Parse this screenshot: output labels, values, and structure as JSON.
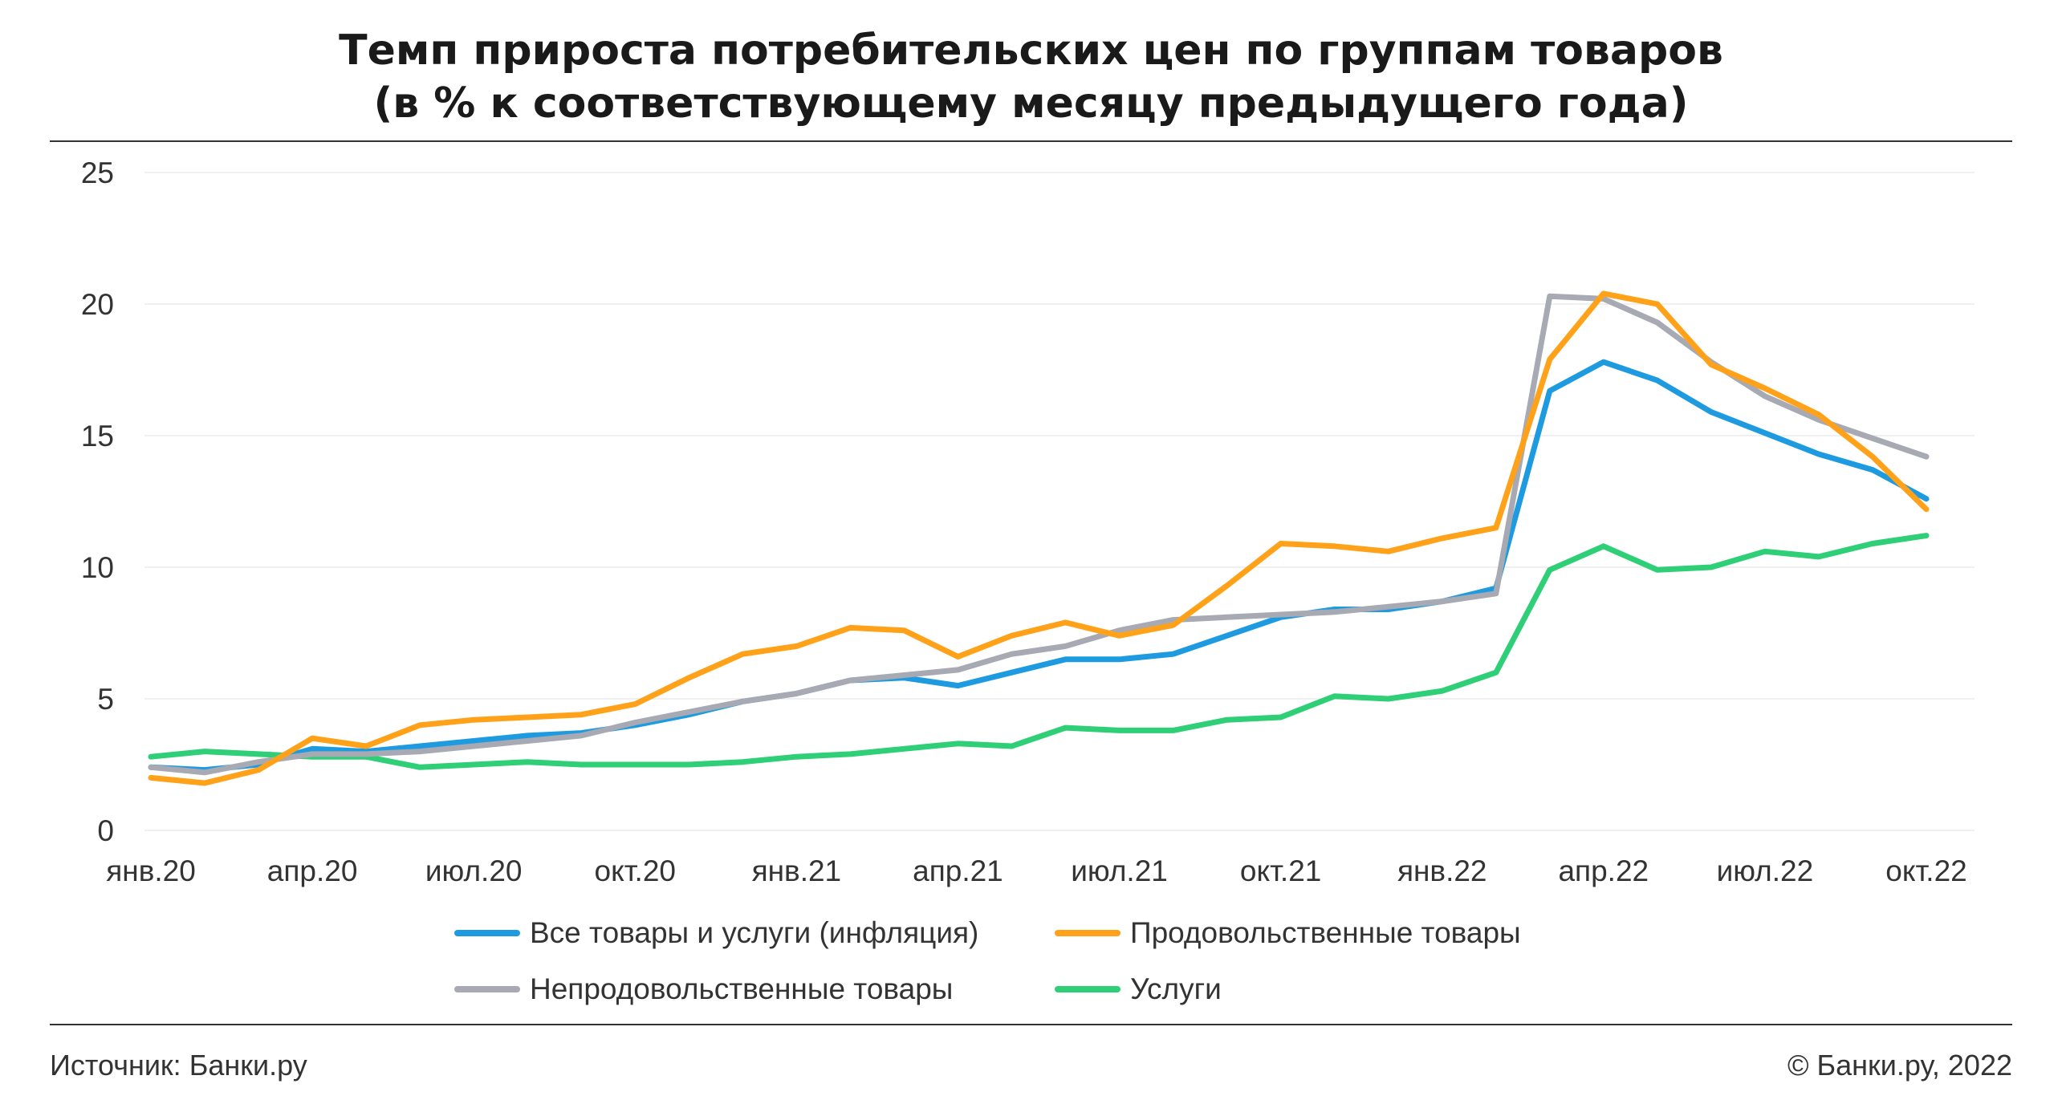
{
  "chart_data": {
    "type": "line",
    "title": "Темп прироста потребительских цен по группам товаров",
    "subtitle": "(в % к соответствующему месяцу предыдущего года)",
    "xlabel": "",
    "ylabel": "",
    "ylim": [
      0,
      25
    ],
    "yticks": [
      "0",
      "5",
      "10",
      "15",
      "20",
      "25"
    ],
    "x": [
      "янв.20",
      "фев.20",
      "мар.20",
      "апр.20",
      "май.20",
      "июн.20",
      "июл.20",
      "авг.20",
      "сен.20",
      "окт.20",
      "ноя.20",
      "дек.20",
      "янв.21",
      "фев.21",
      "мар.21",
      "апр.21",
      "май.21",
      "июн.21",
      "июл.21",
      "авг.21",
      "сен.21",
      "окт.21",
      "ноя.21",
      "дек.21",
      "янв.22",
      "фев.22",
      "мар.22",
      "апр.22",
      "май.22",
      "июн.22",
      "июл.22",
      "авг.22",
      "сен.22",
      "окт.22"
    ],
    "xtick_labels": [
      "янв.20",
      "апр.20",
      "июл.20",
      "окт.20",
      "янв.21",
      "апр.21",
      "июл.21",
      "окт.21",
      "янв.22",
      "апр.22",
      "июл.22",
      "окт.22"
    ],
    "grid": "horizontal",
    "legend_position": "bottom",
    "series": [
      {
        "name": "Все товары и услуги (инфляция)",
        "color": "#1E9BE0",
        "values": [
          2.4,
          2.3,
          2.5,
          3.1,
          3.0,
          3.2,
          3.4,
          3.6,
          3.7,
          4.0,
          4.4,
          4.9,
          5.2,
          5.7,
          5.8,
          5.5,
          6.0,
          6.5,
          6.5,
          6.7,
          7.4,
          8.1,
          8.4,
          8.4,
          8.7,
          9.2,
          16.7,
          17.8,
          17.1,
          15.9,
          15.1,
          14.3,
          13.7,
          12.6
        ]
      },
      {
        "name": "Продовольственные товары",
        "color": "#FFA219",
        "values": [
          2.0,
          1.8,
          2.3,
          3.5,
          3.2,
          4.0,
          4.2,
          4.3,
          4.4,
          4.8,
          5.8,
          6.7,
          7.0,
          7.7,
          7.6,
          6.6,
          7.4,
          7.9,
          7.4,
          7.8,
          9.3,
          10.9,
          10.8,
          10.6,
          11.1,
          11.5,
          17.9,
          20.4,
          20.0,
          17.7,
          16.8,
          15.8,
          14.2,
          12.2
        ]
      },
      {
        "name": "Непродовольственные товары",
        "color": "#A7A9B3",
        "values": [
          2.4,
          2.2,
          2.6,
          2.9,
          2.9,
          3.0,
          3.2,
          3.4,
          3.6,
          4.1,
          4.5,
          4.9,
          5.2,
          5.7,
          5.9,
          6.1,
          6.7,
          7.0,
          7.6,
          8.0,
          8.1,
          8.2,
          8.3,
          8.5,
          8.7,
          9.0,
          20.3,
          20.2,
          19.3,
          17.8,
          16.5,
          15.6,
          14.9,
          14.2
        ]
      },
      {
        "name": "Услуги",
        "color": "#2ECF76",
        "values": [
          2.8,
          3.0,
          2.9,
          2.8,
          2.8,
          2.4,
          2.5,
          2.6,
          2.5,
          2.5,
          2.5,
          2.6,
          2.8,
          2.9,
          3.1,
          3.3,
          3.2,
          3.9,
          3.8,
          3.8,
          4.2,
          4.3,
          5.1,
          5.0,
          5.3,
          6.0,
          9.9,
          10.8,
          9.9,
          10.0,
          10.6,
          10.4,
          10.9,
          11.2
        ]
      }
    ]
  },
  "footer": {
    "source": "Источник: Банки.ру",
    "copyright": "© Банки.ру, 2022"
  }
}
